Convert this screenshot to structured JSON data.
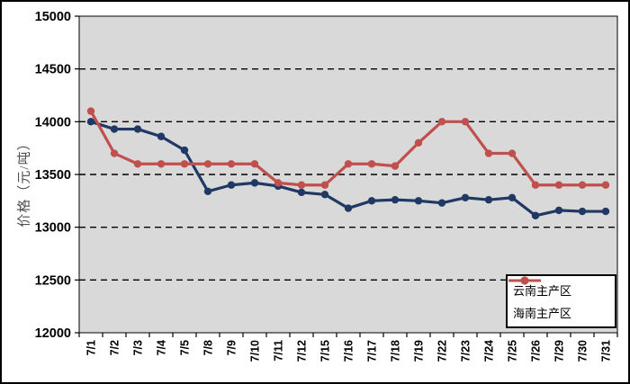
{
  "chart_data": {
    "type": "line",
    "title": "",
    "xlabel": "",
    "ylabel": "价格（元/吨）",
    "ylim": [
      12000,
      15000
    ],
    "ytick_step": 500,
    "grid": "horizontal-dashed",
    "plot_bg_color": "#d9d9d9",
    "gridline_color": "#000000",
    "legend_position": "bottom-right",
    "categories": [
      "7/1",
      "7/2",
      "7/3",
      "7/4",
      "7/5",
      "7/8",
      "7/9",
      "7/10",
      "7/11",
      "7/12",
      "7/15",
      "7/16",
      "7/17",
      "7/18",
      "7/19",
      "7/22",
      "7/23",
      "7/24",
      "7/25",
      "7/26",
      "7/29",
      "7/30",
      "7/31"
    ],
    "series": [
      {
        "name": "云南主产区",
        "color": "#1f3864",
        "marker": "circle",
        "values": [
          14000,
          13930,
          13930,
          13860,
          13730,
          13340,
          13400,
          13420,
          13390,
          13330,
          13310,
          13180,
          13250,
          13260,
          13250,
          13230,
          13280,
          13260,
          13280,
          13110,
          13160,
          13150,
          13150
        ]
      },
      {
        "name": "海南主产区",
        "color": "#c0504d",
        "marker": "circle",
        "values": [
          14100,
          13700,
          13600,
          13600,
          13600,
          13600,
          13600,
          13600,
          13420,
          13400,
          13400,
          13600,
          13600,
          13580,
          13800,
          14000,
          14000,
          13700,
          13700,
          13400,
          13400,
          13400,
          13400
        ]
      }
    ]
  }
}
